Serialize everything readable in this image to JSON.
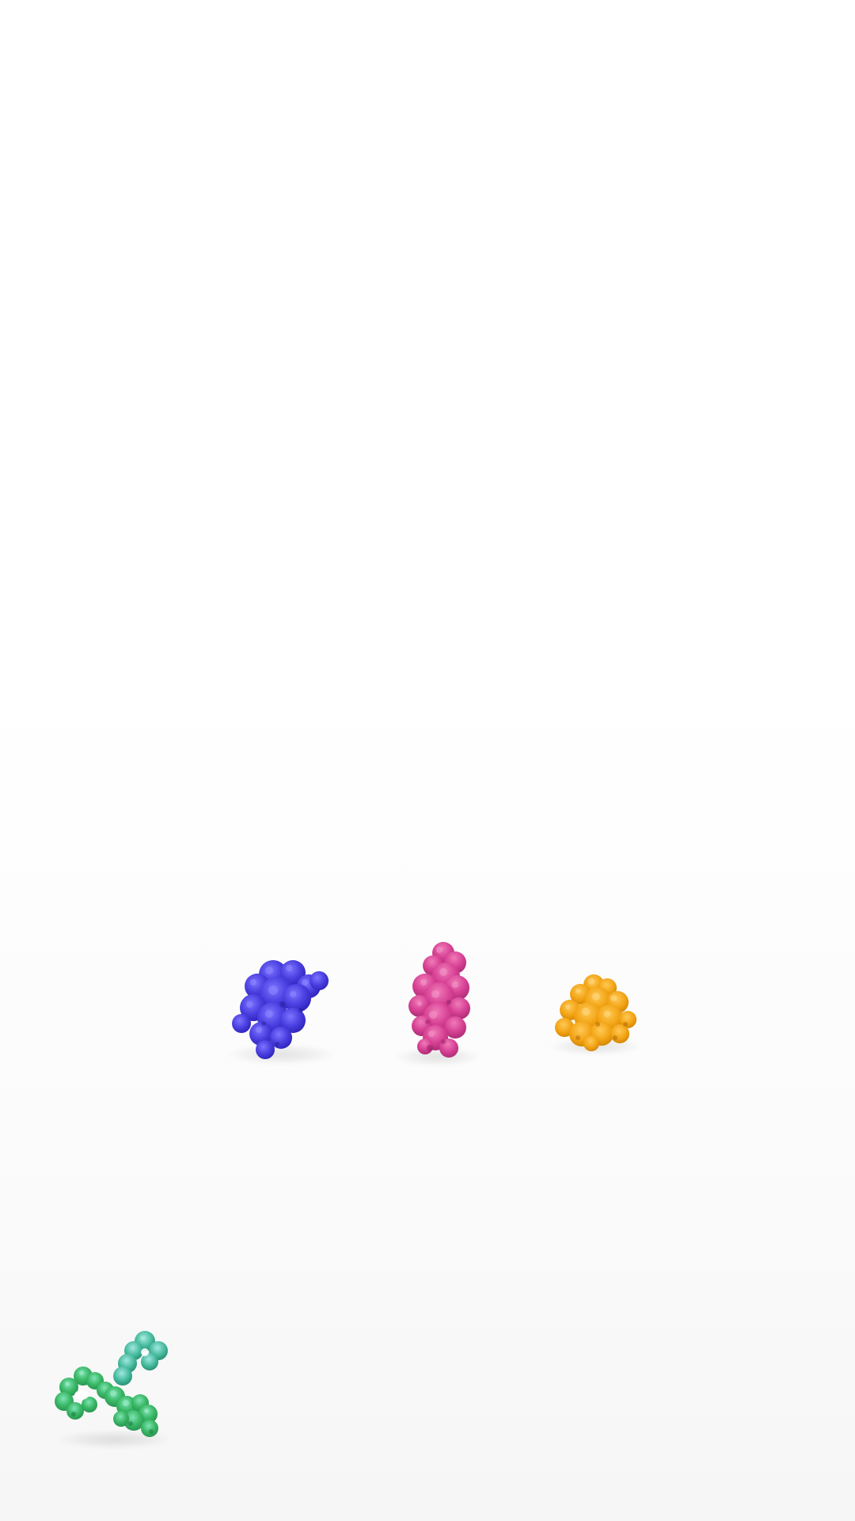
{
  "scene": {
    "description_free": true,
    "background": "#ffffff",
    "molecules": [
      {
        "name": "blue-protein",
        "color": "#4a3fe0",
        "shade": "#2d22b8",
        "highlight": "#7d74ff"
      },
      {
        "name": "pink-protein",
        "color": "#d63f93",
        "shade": "#a52a6f",
        "highlight": "#f07bb8"
      },
      {
        "name": "orange-protein",
        "color": "#f2a314",
        "shade": "#c77c00",
        "highlight": "#ffc955"
      },
      {
        "name": "green-antibody",
        "color": "#3ab866",
        "shade": "#22894a",
        "highlight": "#7fe3b5"
      }
    ]
  }
}
